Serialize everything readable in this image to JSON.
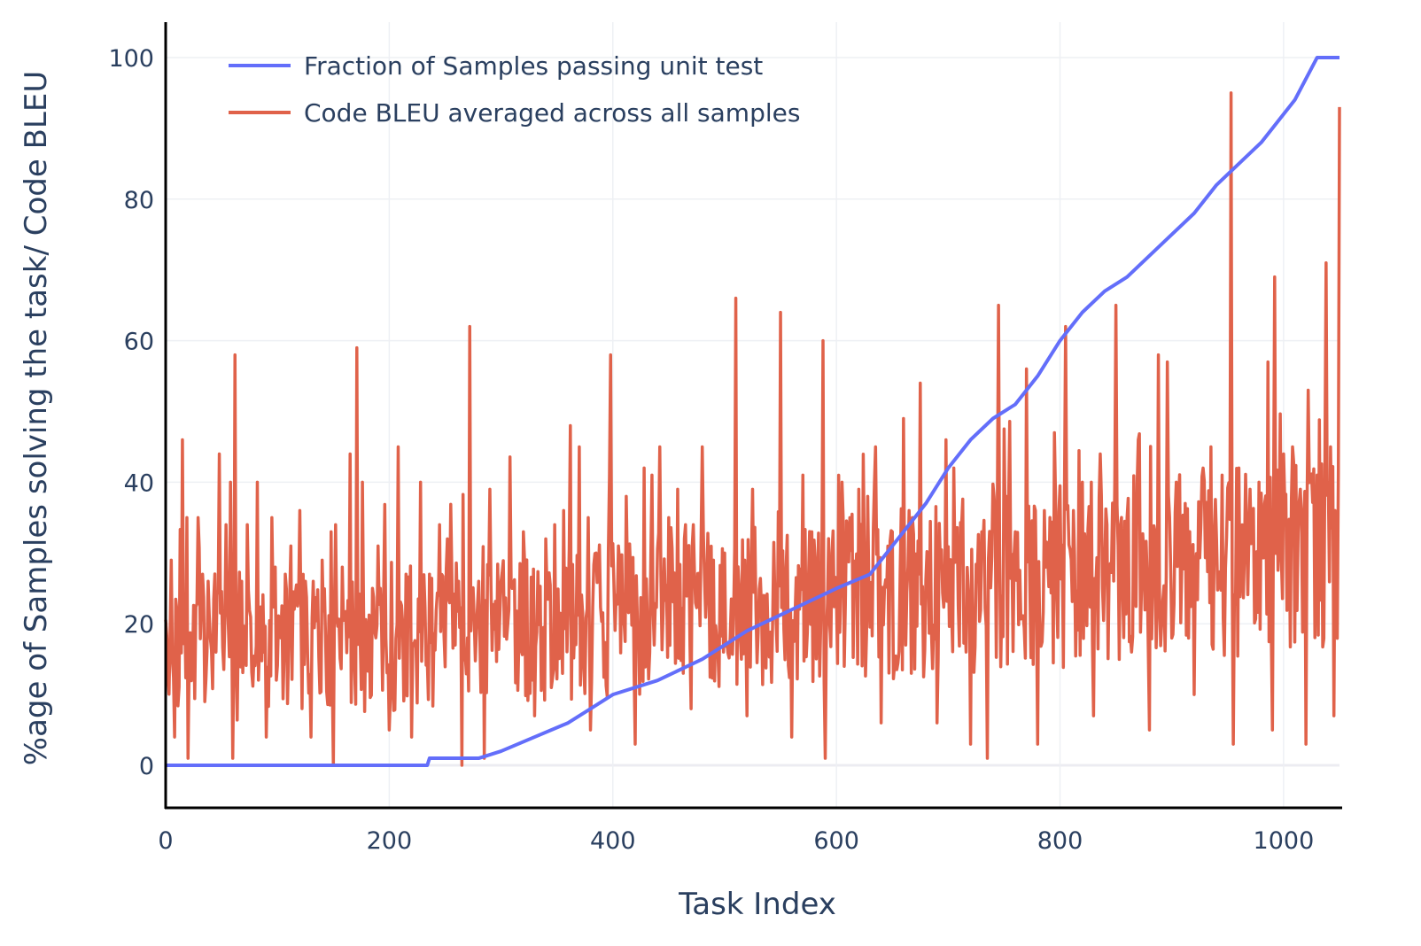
{
  "chart_data": {
    "type": "line",
    "title": "",
    "xlabel": "Task Index",
    "ylabel": "%age of Samples solving the task/ Code BLEU",
    "xlim": [
      0,
      1050
    ],
    "ylim": [
      -6,
      105
    ],
    "x_ticks": [
      0,
      200,
      400,
      600,
      800,
      1000
    ],
    "y_ticks": [
      0,
      20,
      40,
      60,
      80,
      100
    ],
    "grid": true,
    "legend_position": "top-left",
    "series": [
      {
        "name": "Fraction of Samples passing unit test",
        "color": "#636efa",
        "points": [
          [
            0,
            0
          ],
          [
            234,
            0
          ],
          [
            236,
            1
          ],
          [
            280,
            1
          ],
          [
            300,
            2
          ],
          [
            330,
            4
          ],
          [
            360,
            6
          ],
          [
            380,
            8
          ],
          [
            400,
            10
          ],
          [
            440,
            12
          ],
          [
            480,
            15
          ],
          [
            520,
            19
          ],
          [
            560,
            22
          ],
          [
            600,
            25
          ],
          [
            630,
            27
          ],
          [
            660,
            33
          ],
          [
            680,
            37
          ],
          [
            700,
            42
          ],
          [
            720,
            46
          ],
          [
            740,
            49
          ],
          [
            760,
            51
          ],
          [
            780,
            55
          ],
          [
            800,
            60
          ],
          [
            820,
            64
          ],
          [
            840,
            67
          ],
          [
            860,
            69
          ],
          [
            880,
            72
          ],
          [
            900,
            75
          ],
          [
            920,
            78
          ],
          [
            940,
            82
          ],
          [
            960,
            85
          ],
          [
            980,
            88
          ],
          [
            1000,
            92
          ],
          [
            1010,
            94
          ],
          [
            1020,
            97
          ],
          [
            1030,
            100
          ],
          [
            1050,
            100
          ]
        ]
      },
      {
        "name": "Code BLEU averaged across all samples",
        "color": "#e0624a",
        "seed": 7,
        "start_index": 0,
        "end_index": 1050,
        "spikes": [
          [
            5,
            29
          ],
          [
            10,
            22
          ],
          [
            15,
            46
          ],
          [
            19,
            35
          ],
          [
            24,
            14
          ],
          [
            29,
            35
          ],
          [
            33,
            27
          ],
          [
            38,
            26
          ],
          [
            45,
            16
          ],
          [
            48,
            44
          ],
          [
            54,
            34
          ],
          [
            58,
            40
          ],
          [
            62,
            58
          ],
          [
            68,
            26
          ],
          [
            73,
            34
          ],
          [
            82,
            40
          ],
          [
            88,
            16
          ],
          [
            95,
            35
          ],
          [
            98,
            28
          ],
          [
            107,
            27
          ],
          [
            112,
            31
          ],
          [
            120,
            36
          ],
          [
            125,
            26
          ],
          [
            132,
            26
          ],
          [
            140,
            29
          ],
          [
            148,
            33
          ],
          [
            152,
            34
          ],
          [
            158,
            28
          ],
          [
            165,
            44
          ],
          [
            171,
            59
          ],
          [
            176,
            40
          ],
          [
            185,
            25
          ],
          [
            190,
            31
          ],
          [
            195,
            24
          ],
          [
            200,
            25
          ],
          [
            208,
            45
          ],
          [
            215,
            27
          ],
          [
            220,
            32
          ],
          [
            228,
            40
          ],
          [
            236,
            27
          ],
          [
            245,
            34
          ],
          [
            252,
            32
          ],
          [
            262,
            26
          ],
          [
            272,
            62
          ],
          [
            280,
            26
          ],
          [
            290,
            39
          ],
          [
            300,
            26
          ],
          [
            310,
            25
          ],
          [
            320,
            33
          ],
          [
            330,
            28
          ],
          [
            340,
            32
          ],
          [
            348,
            34
          ],
          [
            356,
            36
          ],
          [
            362,
            48
          ],
          [
            370,
            45
          ],
          [
            378,
            35
          ],
          [
            385,
            30
          ],
          [
            398,
            58
          ],
          [
            405,
            31
          ],
          [
            412,
            38
          ],
          [
            420,
            44
          ],
          [
            428,
            42
          ],
          [
            435,
            41
          ],
          [
            442,
            45
          ],
          [
            450,
            35
          ],
          [
            458,
            39
          ],
          [
            465,
            34
          ],
          [
            472,
            34
          ],
          [
            480,
            45
          ],
          [
            490,
            29
          ],
          [
            500,
            30
          ],
          [
            510,
            66
          ],
          [
            518,
            29
          ],
          [
            525,
            39
          ],
          [
            535,
            24
          ],
          [
            550,
            64
          ],
          [
            560,
            42
          ],
          [
            570,
            41
          ],
          [
            578,
            33
          ],
          [
            588,
            60
          ],
          [
            596,
            30
          ],
          [
            605,
            40
          ],
          [
            612,
            35
          ],
          [
            620,
            39
          ],
          [
            628,
            38
          ],
          [
            635,
            45
          ],
          [
            640,
            40
          ],
          [
            650,
            33
          ],
          [
            660,
            49
          ],
          [
            668,
            35
          ],
          [
            675,
            54
          ],
          [
            682,
            29
          ],
          [
            690,
            49
          ],
          [
            698,
            46
          ],
          [
            705,
            42
          ],
          [
            712,
            34
          ],
          [
            720,
            30
          ],
          [
            730,
            33
          ],
          [
            745,
            65
          ],
          [
            752,
            38
          ],
          [
            760,
            33
          ],
          [
            770,
            56
          ],
          [
            778,
            36
          ],
          [
            786,
            36
          ],
          [
            795,
            47
          ],
          [
            805,
            62
          ],
          [
            812,
            36
          ],
          [
            820,
            40
          ],
          [
            828,
            40
          ],
          [
            836,
            44
          ],
          [
            842,
            34
          ],
          [
            850,
            65
          ],
          [
            860,
            35
          ],
          [
            870,
            46
          ],
          [
            880,
            64
          ],
          [
            888,
            58
          ],
          [
            896,
            57
          ],
          [
            904,
            40
          ],
          [
            912,
            37
          ],
          [
            920,
            50
          ],
          [
            928,
            42
          ],
          [
            935,
            45
          ],
          [
            945,
            41
          ],
          [
            953,
            95
          ],
          [
            960,
            42
          ],
          [
            970,
            39
          ],
          [
            978,
            40
          ],
          [
            986,
            57
          ],
          [
            992,
            69
          ],
          [
            1000,
            44
          ],
          [
            1008,
            45
          ],
          [
            1015,
            39
          ],
          [
            1022,
            53
          ],
          [
            1030,
            41
          ],
          [
            1038,
            71
          ],
          [
            1042,
            45
          ],
          [
            1046,
            36
          ],
          [
            1050,
            93
          ]
        ],
        "dips": [
          [
            8,
            4
          ],
          [
            20,
            1
          ],
          [
            35,
            9
          ],
          [
            60,
            1
          ],
          [
            90,
            4
          ],
          [
            130,
            4
          ],
          [
            150,
            0
          ],
          [
            200,
            5
          ],
          [
            220,
            4
          ],
          [
            265,
            0
          ],
          [
            285,
            1
          ],
          [
            330,
            7
          ],
          [
            380,
            5
          ],
          [
            420,
            3
          ],
          [
            470,
            8
          ],
          [
            520,
            7
          ],
          [
            560,
            4
          ],
          [
            590,
            1
          ],
          [
            640,
            6
          ],
          [
            690,
            6
          ],
          [
            720,
            3
          ],
          [
            735,
            1
          ],
          [
            780,
            3
          ],
          [
            830,
            7
          ],
          [
            880,
            5
          ],
          [
            920,
            10
          ],
          [
            955,
            3
          ],
          [
            990,
            5
          ],
          [
            1020,
            3
          ],
          [
            1045,
            7
          ]
        ]
      }
    ]
  }
}
